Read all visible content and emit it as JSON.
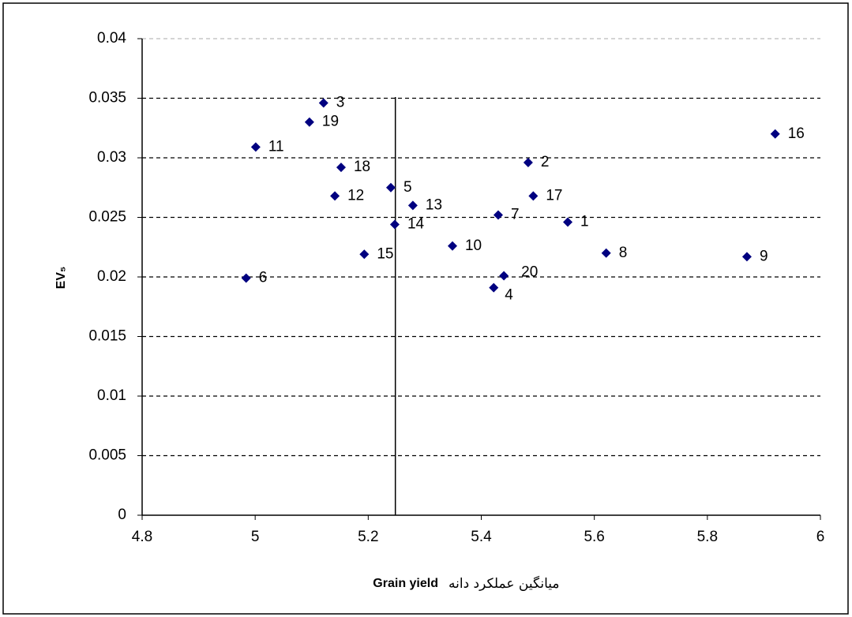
{
  "chart_data": {
    "type": "scatter",
    "ylabel": "EV₅",
    "xlabel": "Grain yield",
    "xlabel_fa": "میانگین عملکرد دانه",
    "labels": [
      "1",
      "2",
      "3",
      "4",
      "5",
      "6",
      "7",
      "8",
      "9",
      "10",
      "11",
      "12",
      "13",
      "14",
      "15",
      "16",
      "17",
      "18",
      "19",
      "20"
    ],
    "x": [
      5.553,
      5.483,
      5.121,
      5.422,
      5.24,
      4.984,
      5.43,
      5.621,
      5.87,
      5.349,
      5.001,
      5.141,
      5.279,
      5.247,
      5.193,
      5.92,
      5.492,
      5.152,
      5.096,
      5.44
    ],
    "values": [
      0.0246,
      0.0296,
      0.0346,
      0.0191,
      0.0275,
      0.0199,
      0.0252,
      0.022,
      0.0217,
      0.0226,
      0.0309,
      0.0268,
      0.026,
      0.0244,
      0.0219,
      0.032,
      0.0268,
      0.0292,
      0.033,
      0.0201
    ],
    "color": "#000080",
    "reference_x": 5.248,
    "xlim": [
      4.8,
      6
    ],
    "xticks": [
      4.8,
      5,
      5.2,
      5.4,
      5.6,
      5.8,
      6
    ],
    "ylim": [
      0,
      0.04
    ],
    "yticks": [
      0,
      0.005,
      0.01,
      0.015,
      0.02,
      0.025,
      0.03,
      0.035,
      0.04
    ],
    "grid": true
  }
}
